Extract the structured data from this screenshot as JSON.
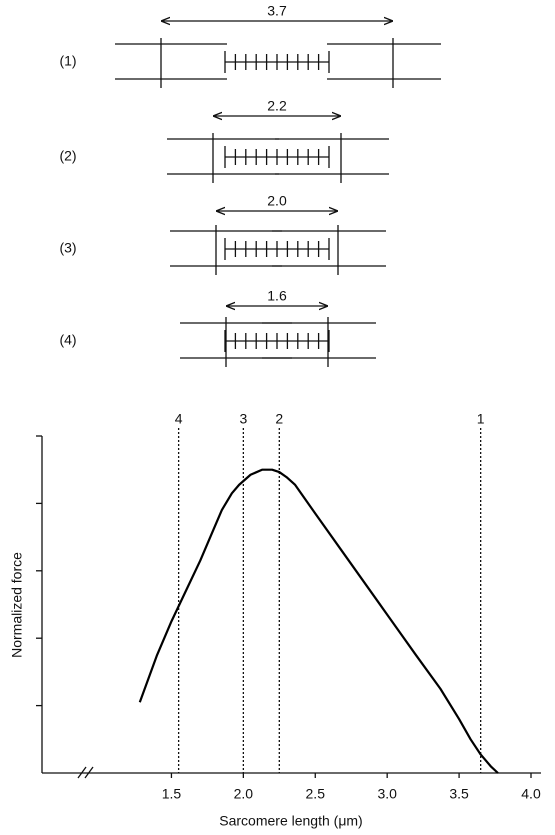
{
  "diagram": {
    "sarcomeres": [
      {
        "label": "(1)",
        "length": "3.7"
      },
      {
        "label": "(2)",
        "length": "2.2"
      },
      {
        "label": "(3)",
        "length": "2.0"
      },
      {
        "label": "(4)",
        "length": "1.6"
      }
    ]
  },
  "chart_data": {
    "type": "line",
    "x_label": "Sarcomere length (μm)",
    "y_label": "Normalized force",
    "x": [
      1.28,
      1.4,
      1.5,
      1.6,
      1.7,
      1.78,
      1.85,
      1.92,
      1.97,
      2.05,
      2.13,
      2.2,
      2.25,
      2.3,
      2.36,
      2.5,
      2.7,
      3.0,
      3.2,
      3.37,
      3.5,
      3.58,
      3.65,
      3.72,
      3.77
    ],
    "series": [
      {
        "name": "Force",
        "color": "#000000",
        "values": [
          0.21,
          0.35,
          0.45,
          0.54,
          0.63,
          0.71,
          0.78,
          0.83,
          0.855,
          0.885,
          0.9,
          0.9,
          0.893,
          0.878,
          0.855,
          0.77,
          0.65,
          0.47,
          0.35,
          0.25,
          0.16,
          0.1,
          0.055,
          0.02,
          0
        ]
      }
    ],
    "xlim": [
      0.6,
      4.0
    ],
    "xticks": [
      1.5,
      {
        "value": 2,
        "label": "2.0"
      },
      2.5,
      {
        "value": 3,
        "label": "3.0"
      },
      3.5,
      {
        "value": 4,
        "label": "4.0"
      }
    ],
    "ylim": [
      0,
      1
    ],
    "yticks": [
      0.2,
      0.4,
      0.6,
      0.8,
      1.0
    ],
    "ytick_labels": false,
    "axis_break": true,
    "markers": [
      {
        "label": "4",
        "x": 1.55
      },
      {
        "label": "3",
        "x": 2.0
      },
      {
        "label": "2",
        "x": 2.25
      },
      {
        "label": "1",
        "x": 3.65
      }
    ]
  }
}
